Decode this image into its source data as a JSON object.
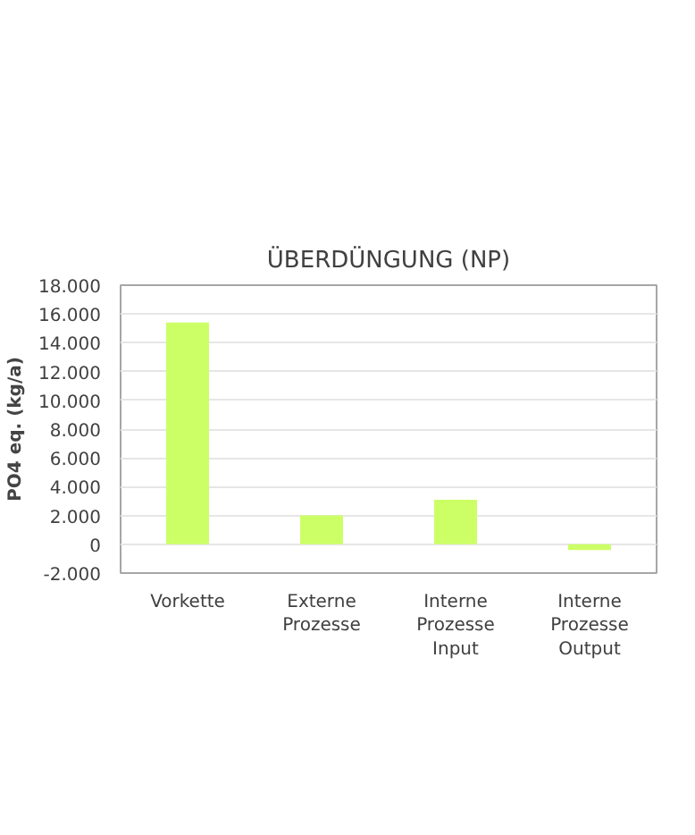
{
  "chart_data": {
    "type": "bar",
    "title": "ÜBERDÜNGUNG (NP)",
    "ylabel": "PO4 eq. (kg/a)",
    "categories": [
      "Vorkette",
      "Externe Prozesse",
      "Interne Prozesse Input",
      "Interne Prozesse Output"
    ],
    "values": [
      15400,
      2000,
      3100,
      -400
    ],
    "color": "#ccff66",
    "ylim": [
      -2000,
      18000
    ],
    "yticks": [
      {
        "value": -2000,
        "label": "-2.000"
      },
      {
        "value": 0,
        "label": "0"
      },
      {
        "value": 2000,
        "label": "2.000"
      },
      {
        "value": 4000,
        "label": "4.000"
      },
      {
        "value": 6000,
        "label": "6.000"
      },
      {
        "value": 8000,
        "label": "8.000"
      },
      {
        "value": 10000,
        "label": "10.000"
      },
      {
        "value": 12000,
        "label": "12.000"
      },
      {
        "value": 14000,
        "label": "14.000"
      },
      {
        "value": 16000,
        "label": "16.000"
      },
      {
        "value": 18000,
        "label": "18.000"
      }
    ],
    "grid": "y"
  }
}
